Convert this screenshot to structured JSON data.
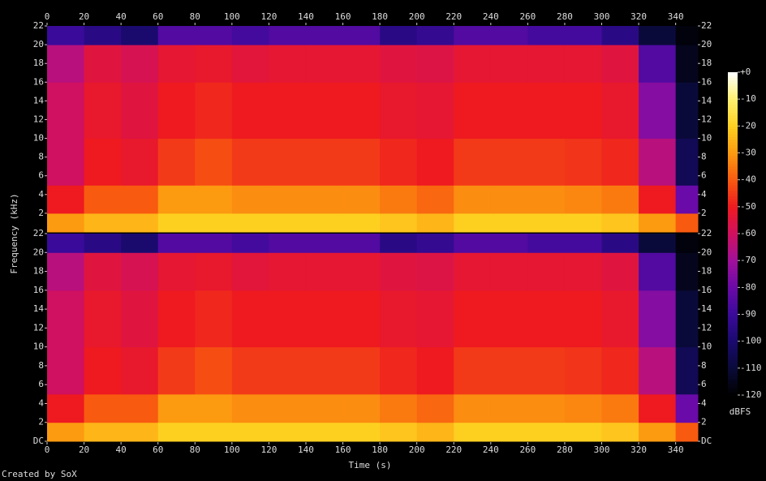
{
  "chart_data": {
    "type": "spectrogram",
    "xlabel": "Time (s)",
    "ylabel": "Frequency (kHz)",
    "footer": "Created by SoX",
    "xlim": [
      0,
      352
    ],
    "xticks": [
      0,
      20,
      40,
      60,
      80,
      100,
      120,
      140,
      160,
      180,
      200,
      220,
      240,
      260,
      280,
      300,
      320,
      340
    ],
    "ylim": [
      0,
      22
    ],
    "yticks": [
      {
        "value": 0,
        "label": "DC"
      },
      2,
      4,
      6,
      8,
      10,
      12,
      14,
      16,
      18,
      20,
      22
    ],
    "time_bins": [
      0,
      20,
      40,
      60,
      80,
      100,
      120,
      140,
      160,
      180,
      200,
      220,
      240,
      260,
      280,
      300,
      320,
      340,
      352
    ],
    "freq_bins": [
      0,
      2,
      5,
      10,
      16,
      20,
      22
    ],
    "colorbar": {
      "label": "dBFS",
      "lim": [
        -120,
        0
      ],
      "ticks": [
        {
          "value": 0,
          "label": "+0"
        },
        -10,
        -20,
        -30,
        -40,
        -50,
        -60,
        -70,
        -80,
        -90,
        -100,
        -110,
        -120
      ],
      "colors": [
        "#000000",
        "#0a0a3a",
        "#1a0a6e",
        "#3a0a9a",
        "#6a0aa8",
        "#a0109a",
        "#d01060",
        "#ee1a20",
        "#f85a10",
        "#fc9a10",
        "#fdd020",
        "#fff070",
        "#ffffff"
      ]
    },
    "channels": [
      {
        "values": [
          [
            -30,
            -50,
            -60,
            -60,
            -65,
            -90
          ],
          [
            -25,
            -40,
            -50,
            -52,
            -55,
            -95
          ],
          [
            -25,
            -40,
            -52,
            -55,
            -58,
            -100
          ],
          [
            -20,
            -30,
            -45,
            -50,
            -53,
            -85
          ],
          [
            -20,
            -30,
            -42,
            -48,
            -52,
            -85
          ],
          [
            -20,
            -32,
            -45,
            -50,
            -54,
            -88
          ],
          [
            -20,
            -32,
            -45,
            -50,
            -53,
            -85
          ],
          [
            -20,
            -32,
            -45,
            -50,
            -53,
            -85
          ],
          [
            -20,
            -32,
            -45,
            -50,
            -53,
            -85
          ],
          [
            -22,
            -35,
            -48,
            -52,
            -55,
            -95
          ],
          [
            -25,
            -38,
            -50,
            -53,
            -56,
            -92
          ],
          [
            -20,
            -32,
            -45,
            -50,
            -53,
            -85
          ],
          [
            -20,
            -32,
            -45,
            -50,
            -53,
            -85
          ],
          [
            -20,
            -32,
            -45,
            -50,
            -53,
            -88
          ],
          [
            -20,
            -33,
            -46,
            -50,
            -53,
            -88
          ],
          [
            -22,
            -35,
            -48,
            -52,
            -55,
            -95
          ],
          [
            -30,
            -50,
            -65,
            -75,
            -85,
            -110
          ],
          [
            -40,
            -80,
            -105,
            -110,
            -115,
            -118
          ]
        ]
      },
      {
        "values": [
          [
            -30,
            -50,
            -60,
            -60,
            -65,
            -90
          ],
          [
            -25,
            -40,
            -50,
            -52,
            -55,
            -95
          ],
          [
            -25,
            -40,
            -52,
            -55,
            -58,
            -100
          ],
          [
            -20,
            -30,
            -45,
            -50,
            -53,
            -85
          ],
          [
            -20,
            -30,
            -42,
            -48,
            -52,
            -85
          ],
          [
            -20,
            -32,
            -45,
            -50,
            -54,
            -88
          ],
          [
            -20,
            -32,
            -45,
            -50,
            -53,
            -85
          ],
          [
            -20,
            -32,
            -45,
            -50,
            -53,
            -85
          ],
          [
            -20,
            -32,
            -45,
            -50,
            -53,
            -85
          ],
          [
            -22,
            -35,
            -48,
            -52,
            -55,
            -95
          ],
          [
            -25,
            -38,
            -50,
            -53,
            -56,
            -92
          ],
          [
            -20,
            -32,
            -45,
            -50,
            -53,
            -85
          ],
          [
            -20,
            -32,
            -45,
            -50,
            -53,
            -85
          ],
          [
            -20,
            -32,
            -45,
            -50,
            -53,
            -88
          ],
          [
            -20,
            -33,
            -46,
            -50,
            -53,
            -88
          ],
          [
            -22,
            -35,
            -48,
            -52,
            -55,
            -95
          ],
          [
            -30,
            -50,
            -65,
            -75,
            -85,
            -110
          ],
          [
            -40,
            -80,
            -105,
            -110,
            -115,
            -118
          ]
        ]
      }
    ]
  }
}
